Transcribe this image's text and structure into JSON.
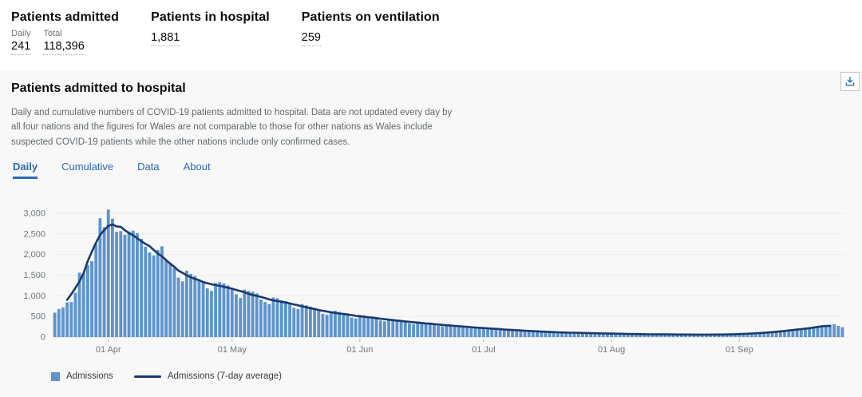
{
  "summary_stats": {
    "admitted": {
      "title": "Patients admitted",
      "metrics": [
        {
          "label": "Daily",
          "value": "241"
        },
        {
          "label": "Total",
          "value": "118,396"
        }
      ]
    },
    "in_hospital": {
      "title": "Patients in hospital",
      "value": "1,881"
    },
    "on_ventilation": {
      "title": "Patients on ventilation",
      "value": "259"
    }
  },
  "card": {
    "title": "Patients admitted to hospital",
    "description": "Daily and cumulative numbers of COVID-19 patients admitted to hospital. Data are not updated every day by all four nations and the figures for Wales are not comparable to those for other nations as Wales include suspected COVID-19 patients while the other nations include only confirmed cases.",
    "tabs": [
      {
        "label": "Daily",
        "active": true
      },
      {
        "label": "Cumulative",
        "active": false
      },
      {
        "label": "Data",
        "active": false
      },
      {
        "label": "About",
        "active": false
      }
    ]
  },
  "colors": {
    "accent_blue": "#2b68b2",
    "bar_blue": "#5e94cd",
    "line_navy": "#1a3a6e",
    "card_bg": "#f8f8f9"
  },
  "chart_data": {
    "type": "bar",
    "title": "Patients admitted to hospital — Daily",
    "ylabel": "",
    "xlabel": "",
    "ylim": [
      0,
      3000
    ],
    "y_ticks": [
      0,
      500,
      1000,
      1500,
      2000,
      2500,
      3000
    ],
    "x_tick_labels": [
      "01 Apr",
      "01 May",
      "01 Jun",
      "01 Jul",
      "01 Aug",
      "01 Sep"
    ],
    "x_tick_day_indices": [
      13,
      43,
      74,
      104,
      135,
      166
    ],
    "grid": "horizontal",
    "legend_position": "bottom",
    "series": [
      {
        "name": "Admissions",
        "type": "bar",
        "color": "#5e94cd",
        "values": [
          590,
          680,
          720,
          840,
          850,
          1070,
          1560,
          1550,
          1740,
          1840,
          2250,
          2880,
          2660,
          3090,
          2870,
          2550,
          2570,
          2480,
          2560,
          2580,
          2520,
          2380,
          2190,
          2050,
          1980,
          2110,
          2200,
          1860,
          1800,
          1680,
          1440,
          1350,
          1610,
          1530,
          1480,
          1390,
          1330,
          1180,
          1120,
          1310,
          1330,
          1300,
          1250,
          1190,
          1040,
          950,
          1150,
          1120,
          1100,
          1060,
          910,
          850,
          800,
          960,
          940,
          890,
          870,
          820,
          710,
          680,
          800,
          770,
          740,
          700,
          660,
          560,
          540,
          620,
          640,
          610,
          580,
          540,
          470,
          450,
          540,
          530,
          500,
          490,
          460,
          400,
          380,
          450,
          440,
          420,
          400,
          380,
          330,
          310,
          380,
          370,
          350,
          330,
          310,
          270,
          260,
          310,
          300,
          290,
          270,
          250,
          220,
          210,
          250,
          240,
          230,
          220,
          200,
          180,
          170,
          200,
          190,
          180,
          170,
          160,
          140,
          130,
          160,
          150,
          140,
          130,
          120,
          110,
          100,
          120,
          120,
          110,
          110,
          100,
          90,
          90,
          100,
          100,
          95,
          90,
          85,
          80,
          75,
          85,
          85,
          80,
          75,
          70,
          65,
          60,
          75,
          70,
          70,
          65,
          65,
          60,
          55,
          70,
          65,
          65,
          60,
          60,
          55,
          55,
          65,
          65,
          60,
          65,
          60,
          60,
          55,
          70,
          75,
          80,
          85,
          90,
          85,
          90,
          105,
          110,
          120,
          130,
          140,
          145,
          155,
          170,
          185,
          195,
          205,
          215,
          225,
          240,
          255,
          280,
          300,
          310,
          270,
          241
        ]
      },
      {
        "name": "Admissions (7-day average)",
        "type": "line",
        "color": "#1a3a6e",
        "derivation": "centered 7-day moving average of Admissions"
      }
    ],
    "legend": [
      {
        "label": "Admissions",
        "swatch": "square",
        "color": "#5e94cd"
      },
      {
        "label": "Admissions (7-day average)",
        "swatch": "line",
        "color": "#1a3a6e"
      }
    ]
  }
}
